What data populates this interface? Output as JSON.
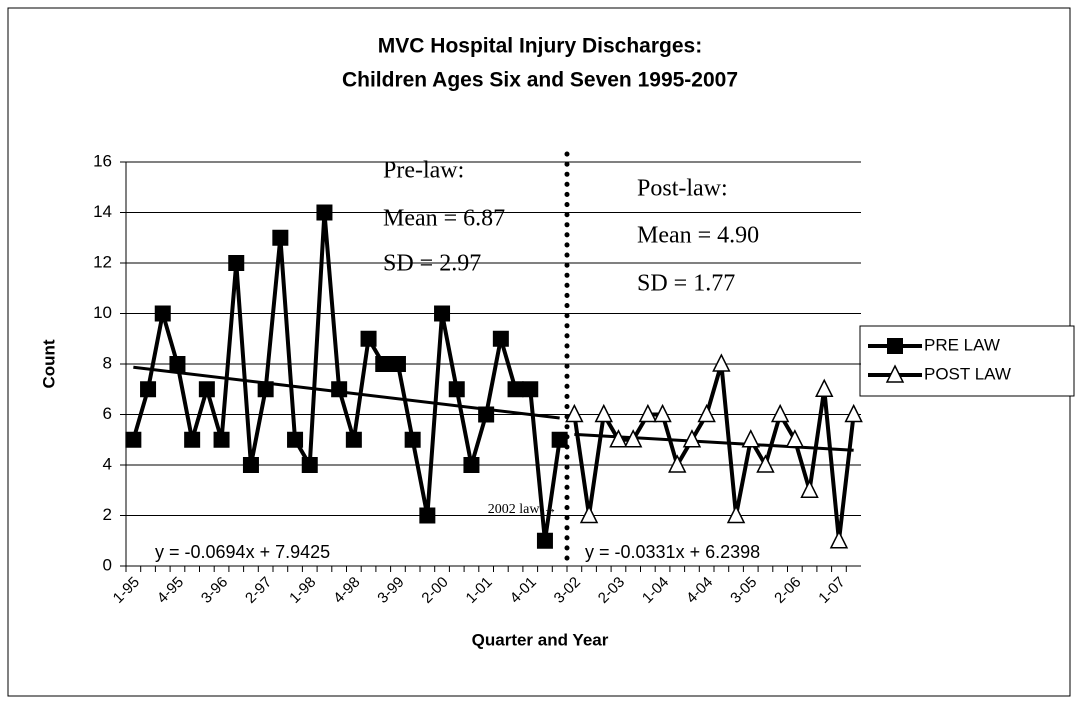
{
  "chart_data": {
    "type": "line",
    "title": [
      "MVC Hospital Injury Discharges:",
      "Children Ages Six and Seven   1995-2007"
    ],
    "x_label": "Quarter and Year",
    "y_label": "Count",
    "categories": [
      "1-95",
      null,
      null,
      "4-95",
      null,
      null,
      "3-96",
      null,
      null,
      "2-97",
      null,
      null,
      "1-98",
      null,
      null,
      "4-98",
      null,
      null,
      "3-99",
      null,
      null,
      "2-00",
      null,
      null,
      "1-01",
      null,
      null,
      "4-01",
      null,
      null,
      "3-02",
      null,
      null,
      "2-03",
      null,
      null,
      "1-04",
      null,
      null,
      "4-04",
      null,
      null,
      "3-05",
      null,
      null,
      "2-06",
      null,
      null,
      "1-07",
      null
    ],
    "series": [
      {
        "name": "PRE LAW",
        "color": "#000000",
        "marker": "square",
        "values": [
          5,
          7,
          10,
          8,
          5,
          7,
          5,
          12,
          4,
          7,
          13,
          5,
          4,
          14,
          7,
          5,
          9,
          8,
          8,
          5,
          2,
          10,
          7,
          4,
          6,
          9,
          7,
          7,
          1,
          5,
          null,
          null,
          null,
          null,
          null,
          null,
          null,
          null,
          null,
          null,
          null,
          null,
          null,
          null,
          null,
          null,
          null,
          null,
          null,
          null
        ],
        "trendline": {
          "label": "y = -0.0694x + 7.9425",
          "slope": -0.0694,
          "intercept": 7.9425
        }
      },
      {
        "name": "POST LAW",
        "color": "#000000",
        "marker": "triangle",
        "values": [
          null,
          null,
          null,
          null,
          null,
          null,
          null,
          null,
          null,
          null,
          null,
          null,
          null,
          null,
          null,
          null,
          null,
          null,
          null,
          null,
          null,
          null,
          null,
          null,
          null,
          null,
          null,
          null,
          null,
          null,
          6,
          2,
          6,
          5,
          5,
          6,
          6,
          4,
          5,
          6,
          8,
          2,
          5,
          4,
          6,
          5,
          3,
          7,
          1,
          6
        ],
        "trendline": {
          "label": "y = -0.0331x + 6.2398",
          "slope": -0.0331,
          "intercept": 6.2398
        }
      }
    ],
    "annotations": {
      "pre": [
        "Pre-law:",
        "Mean = 6.87",
        "SD = 2.97"
      ],
      "post": [
        "Post-law:",
        "Mean = 4.90",
        "SD = 1.77"
      ],
      "law": "2002 law →"
    },
    "ylim": [
      0,
      16
    ],
    "yticks": [
      0,
      2,
      4,
      6,
      8,
      10,
      12,
      14,
      16
    ],
    "grid": true,
    "legend": "right"
  }
}
